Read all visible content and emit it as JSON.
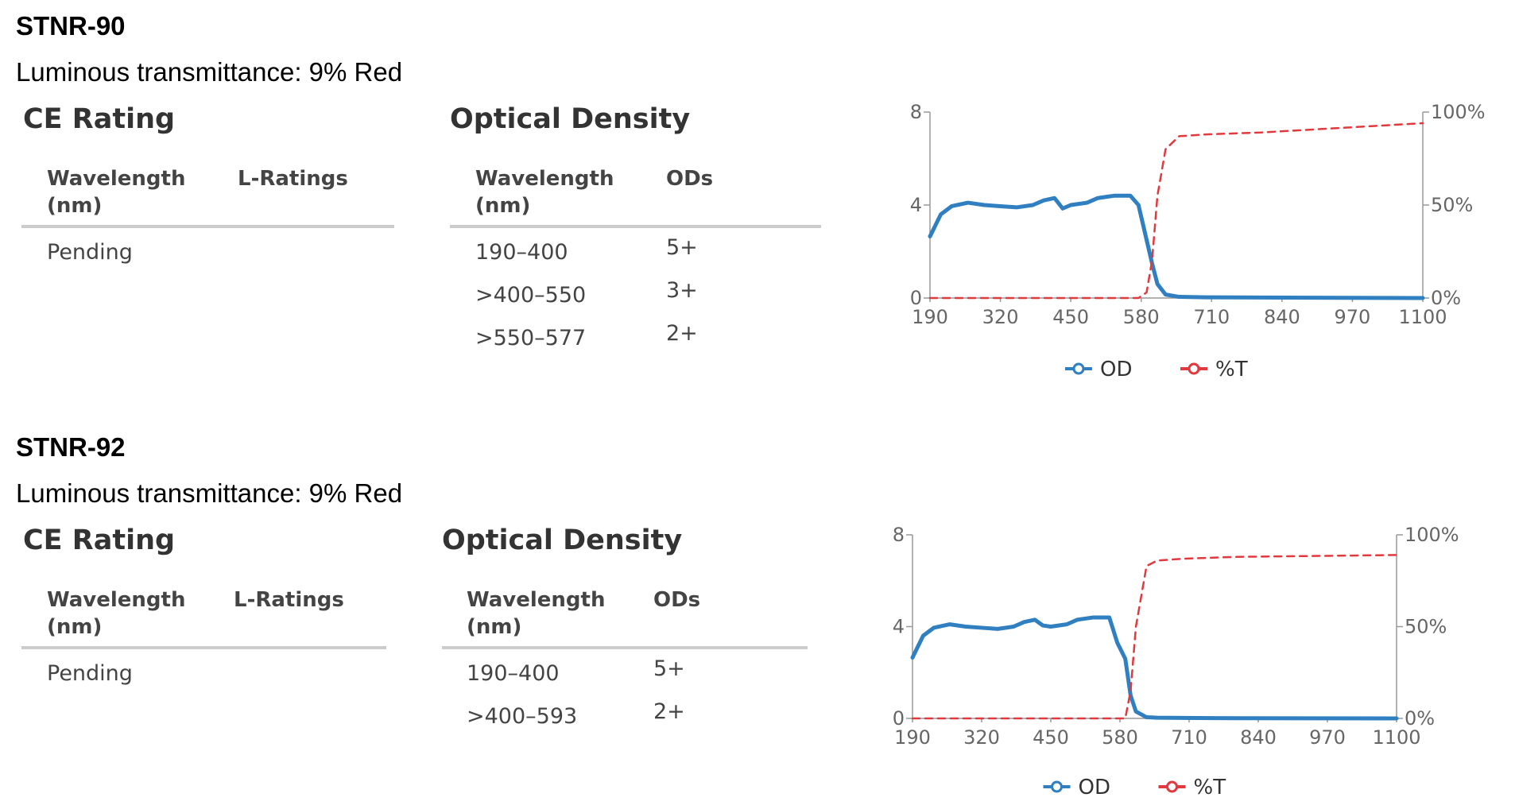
{
  "products": [
    {
      "title": "STNR-90",
      "transmittance": "Luminous transmittance: 9% Red",
      "ce": {
        "heading": "CE Rating",
        "columns": [
          "Wavelength (nm)",
          "L-Ratings"
        ],
        "rows": [
          [
            "Pending"
          ]
        ]
      },
      "od": {
        "heading": "Optical Density",
        "columns": [
          "Wavelength (nm)",
          "ODs"
        ],
        "rows": [
          [
            "190–400",
            "5+"
          ],
          [
            ">400–550",
            "3+"
          ],
          [
            ">550–577",
            "2+"
          ]
        ]
      }
    },
    {
      "title": "STNR-92",
      "transmittance": "Luminous transmittance: 9% Red",
      "ce": {
        "heading": "CE Rating",
        "columns": [
          "Wavelength (nm)",
          "L-Ratings"
        ],
        "rows": [
          [
            "Pending"
          ]
        ]
      },
      "od": {
        "heading": "Optical Density",
        "columns": [
          "Wavelength (nm)",
          "ODs"
        ],
        "rows": [
          [
            "190–400",
            "5+"
          ],
          [
            ">400–593",
            "2+"
          ]
        ]
      }
    }
  ],
  "chart_data": [
    {
      "type": "line",
      "x": [
        190,
        210,
        230,
        260,
        290,
        320,
        350,
        380,
        400,
        420,
        435,
        450,
        480,
        500,
        530,
        560,
        575,
        590,
        600,
        610,
        625,
        650,
        700,
        800,
        1100
      ],
      "series": [
        {
          "name": "OD",
          "color": "#2f7fc1",
          "values": [
            2.65,
            3.6,
            3.95,
            4.1,
            4.0,
            3.95,
            3.9,
            4.0,
            4.2,
            4.3,
            3.85,
            4.0,
            4.1,
            4.3,
            4.4,
            4.4,
            4.0,
            2.5,
            1.5,
            0.6,
            0.15,
            0.05,
            0.03,
            0.02,
            0
          ]
        },
        {
          "name": "%T",
          "color": "#e0393e",
          "axis": "y2",
          "dashed": true,
          "values": [
            0,
            0,
            0,
            0,
            0,
            0,
            0,
            0,
            0,
            0,
            0,
            0,
            0,
            0,
            0,
            0,
            0,
            3,
            20,
            55,
            80,
            87,
            88,
            89,
            94
          ]
        }
      ],
      "xlim": [
        190,
        1100
      ],
      "xticks": [
        190,
        320,
        450,
        580,
        710,
        840,
        970,
        1100
      ],
      "ylim": [
        0,
        8
      ],
      "yticks": [
        0,
        4,
        8
      ],
      "y2lim": [
        0,
        100
      ],
      "y2ticks": [
        {
          "value": 0,
          "label": "0%"
        },
        {
          "value": 50,
          "label": "50%"
        },
        {
          "value": 100,
          "label": "100%"
        }
      ]
    },
    {
      "type": "line",
      "x": [
        190,
        210,
        230,
        260,
        290,
        320,
        350,
        380,
        400,
        420,
        435,
        450,
        480,
        500,
        530,
        560,
        575,
        590,
        600,
        610,
        630,
        650,
        700,
        800,
        1100
      ],
      "series": [
        {
          "name": "OD",
          "color": "#2f7fc1",
          "values": [
            2.65,
            3.6,
            3.95,
            4.1,
            4.0,
            3.95,
            3.9,
            4.0,
            4.2,
            4.3,
            4.05,
            4.0,
            4.1,
            4.3,
            4.4,
            4.4,
            3.3,
            2.6,
            1.0,
            0.3,
            0.05,
            0.03,
            0.02,
            0.01,
            0
          ]
        },
        {
          "name": "%T",
          "color": "#e0393e",
          "axis": "y2",
          "dashed": true,
          "values": [
            0,
            0,
            0,
            0,
            0,
            0,
            0,
            0,
            0,
            0,
            0,
            0,
            0,
            0,
            0,
            0,
            0,
            0,
            15,
            50,
            83,
            86,
            87,
            88,
            89
          ]
        }
      ],
      "xlim": [
        190,
        1100
      ],
      "xticks": [
        190,
        320,
        450,
        580,
        710,
        840,
        970,
        1100
      ],
      "ylim": [
        0,
        8
      ],
      "yticks": [
        0,
        4,
        8
      ],
      "y2lim": [
        0,
        100
      ],
      "y2ticks": [
        {
          "value": 0,
          "label": "0%"
        },
        {
          "value": 50,
          "label": "50%"
        },
        {
          "value": 100,
          "label": "100%"
        }
      ]
    }
  ]
}
